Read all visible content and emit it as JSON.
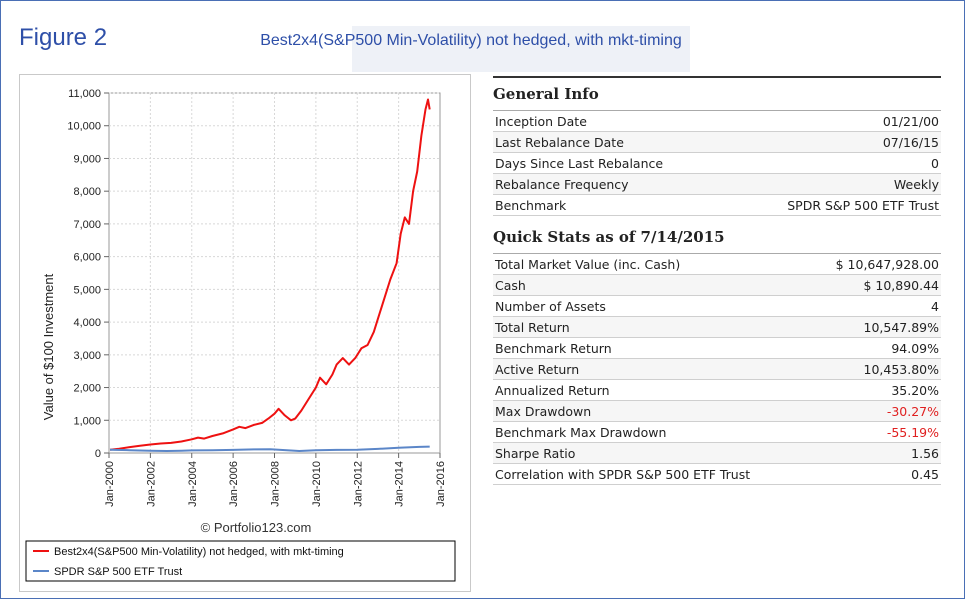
{
  "figure_label": "Figure 2",
  "subtitle": "Best2x4(S&P500 Min-Volatility) not hedged, with mkt-timing",
  "watermark": "© Portfolio123.com",
  "general_info": {
    "title": "General Info",
    "rows": [
      {
        "label": "Inception Date",
        "value": "01/21/00"
      },
      {
        "label": "Last Rebalance Date",
        "value": "07/16/15"
      },
      {
        "label": "Days Since Last Rebalance",
        "value": "0"
      },
      {
        "label": "Rebalance Frequency",
        "value": "Weekly"
      },
      {
        "label": "Benchmark",
        "value": "SPDR S&P 500 ETF Trust"
      }
    ]
  },
  "quick_stats": {
    "title": "Quick Stats as of 7/14/2015",
    "rows": [
      {
        "label": "Total Market Value (inc. Cash)",
        "value": "$ 10,647,928.00",
        "negative": false
      },
      {
        "label": "Cash",
        "value": "$ 10,890.44",
        "negative": false
      },
      {
        "label": "Number of Assets",
        "value": "4",
        "negative": false
      },
      {
        "label": "Total Return",
        "value": "10,547.89%",
        "negative": false
      },
      {
        "label": "Benchmark Return",
        "value": "94.09%",
        "negative": false
      },
      {
        "label": "Active Return",
        "value": "10,453.80%",
        "negative": false
      },
      {
        "label": "Annualized Return",
        "value": "35.20%",
        "negative": false
      },
      {
        "label": "Max Drawdown",
        "value": "-30.27%",
        "negative": true
      },
      {
        "label": "Benchmark Max Drawdown",
        "value": "-55.19%",
        "negative": true
      },
      {
        "label": "Sharpe Ratio",
        "value": "1.56",
        "negative": false
      },
      {
        "label": "Correlation with SPDR S&P 500 ETF Trust",
        "value": "0.45",
        "negative": false
      }
    ]
  },
  "chart_data": {
    "type": "line",
    "ylabel": "Value of $100 Investment",
    "xlabel": "",
    "ylim": [
      0,
      11000
    ],
    "xlim": [
      2000,
      2016
    ],
    "yticks": [
      "0",
      "1,000",
      "2,000",
      "3,000",
      "4,000",
      "5,000",
      "6,000",
      "7,000",
      "8,000",
      "9,000",
      "10,000",
      "11,000"
    ],
    "xticks": [
      "Jan-2000",
      "Jan-2002",
      "Jan-2004",
      "Jan-2006",
      "Jan-2008",
      "Jan-2010",
      "Jan-2012",
      "Jan-2014",
      "Jan-2016"
    ],
    "grid": true,
    "legend_position": "bottom",
    "series": [
      {
        "name": "Best2x4(S&P500 Min-Volatility) not hedged, with mkt-timing",
        "color": "#ee1111",
        "points": [
          [
            2000.05,
            100
          ],
          [
            2000.5,
            130
          ],
          [
            2001.0,
            180
          ],
          [
            2001.5,
            220
          ],
          [
            2002.0,
            260
          ],
          [
            2002.5,
            290
          ],
          [
            2003.0,
            310
          ],
          [
            2003.5,
            350
          ],
          [
            2004.0,
            420
          ],
          [
            2004.3,
            470
          ],
          [
            2004.6,
            440
          ],
          [
            2005.0,
            520
          ],
          [
            2005.5,
            600
          ],
          [
            2006.0,
            720
          ],
          [
            2006.3,
            800
          ],
          [
            2006.6,
            760
          ],
          [
            2007.0,
            860
          ],
          [
            2007.4,
            920
          ],
          [
            2007.7,
            1050
          ],
          [
            2008.0,
            1200
          ],
          [
            2008.2,
            1350
          ],
          [
            2008.5,
            1150
          ],
          [
            2008.8,
            1000
          ],
          [
            2009.0,
            1050
          ],
          [
            2009.3,
            1300
          ],
          [
            2009.6,
            1600
          ],
          [
            2010.0,
            2000
          ],
          [
            2010.2,
            2300
          ],
          [
            2010.5,
            2100
          ],
          [
            2010.8,
            2400
          ],
          [
            2011.0,
            2700
          ],
          [
            2011.3,
            2900
          ],
          [
            2011.6,
            2700
          ],
          [
            2011.9,
            2900
          ],
          [
            2012.2,
            3200
          ],
          [
            2012.5,
            3300
          ],
          [
            2012.8,
            3700
          ],
          [
            2013.0,
            4100
          ],
          [
            2013.3,
            4700
          ],
          [
            2013.6,
            5300
          ],
          [
            2013.9,
            5800
          ],
          [
            2014.1,
            6700
          ],
          [
            2014.3,
            7200
          ],
          [
            2014.5,
            7000
          ],
          [
            2014.7,
            8000
          ],
          [
            2014.9,
            8600
          ],
          [
            2015.1,
            9700
          ],
          [
            2015.3,
            10500
          ],
          [
            2015.42,
            10800
          ],
          [
            2015.5,
            10500
          ]
        ]
      },
      {
        "name": "SPDR S&P 500 ETF Trust",
        "color": "#5b86c8",
        "points": [
          [
            2000.05,
            100
          ],
          [
            2001.0,
            85
          ],
          [
            2002.0,
            70
          ],
          [
            2002.8,
            60
          ],
          [
            2003.5,
            70
          ],
          [
            2004.0,
            80
          ],
          [
            2005.0,
            85
          ],
          [
            2006.0,
            95
          ],
          [
            2007.0,
            110
          ],
          [
            2007.8,
            115
          ],
          [
            2008.5,
            90
          ],
          [
            2009.2,
            60
          ],
          [
            2010.0,
            85
          ],
          [
            2011.0,
            95
          ],
          [
            2012.0,
            100
          ],
          [
            2013.0,
            125
          ],
          [
            2014.0,
            160
          ],
          [
            2015.0,
            185
          ],
          [
            2015.5,
            195
          ]
        ]
      }
    ]
  }
}
